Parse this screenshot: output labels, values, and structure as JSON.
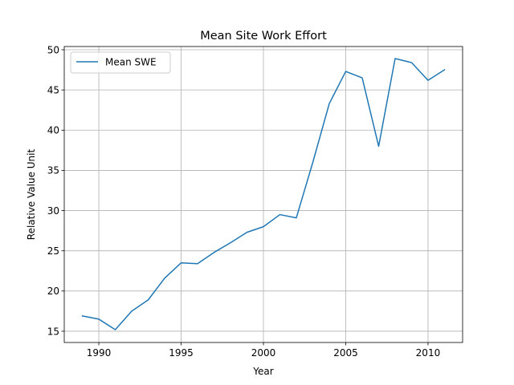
{
  "chart_data": {
    "type": "line",
    "title": "Mean Site Work Effort",
    "xlabel": "Year",
    "ylabel": "Relative Value Unit",
    "xlim": [
      1987.9,
      2012.1
    ],
    "ylim": [
      13.6,
      50.4
    ],
    "xticks": [
      1990,
      1995,
      2000,
      2005,
      2010
    ],
    "yticks": [
      15,
      20,
      25,
      30,
      35,
      40,
      45,
      50
    ],
    "grid": true,
    "legend_position": "top-left",
    "series": [
      {
        "name": "Mean SWE",
        "color": "#1f77b4",
        "x": [
          1989,
          1990,
          1991,
          1992,
          1993,
          1994,
          1995,
          1996,
          1997,
          1998,
          1999,
          2000,
          2001,
          2002,
          2003,
          2004,
          2005,
          2006,
          2007,
          2008,
          2009,
          2010,
          2011
        ],
        "y": [
          16.9,
          16.5,
          15.2,
          17.5,
          18.9,
          21.6,
          23.5,
          23.4,
          24.8,
          26.0,
          27.3,
          28.0,
          29.5,
          29.1,
          36.0,
          43.3,
          47.3,
          46.5,
          38.0,
          48.9,
          48.4,
          46.2,
          47.5
        ]
      }
    ]
  }
}
